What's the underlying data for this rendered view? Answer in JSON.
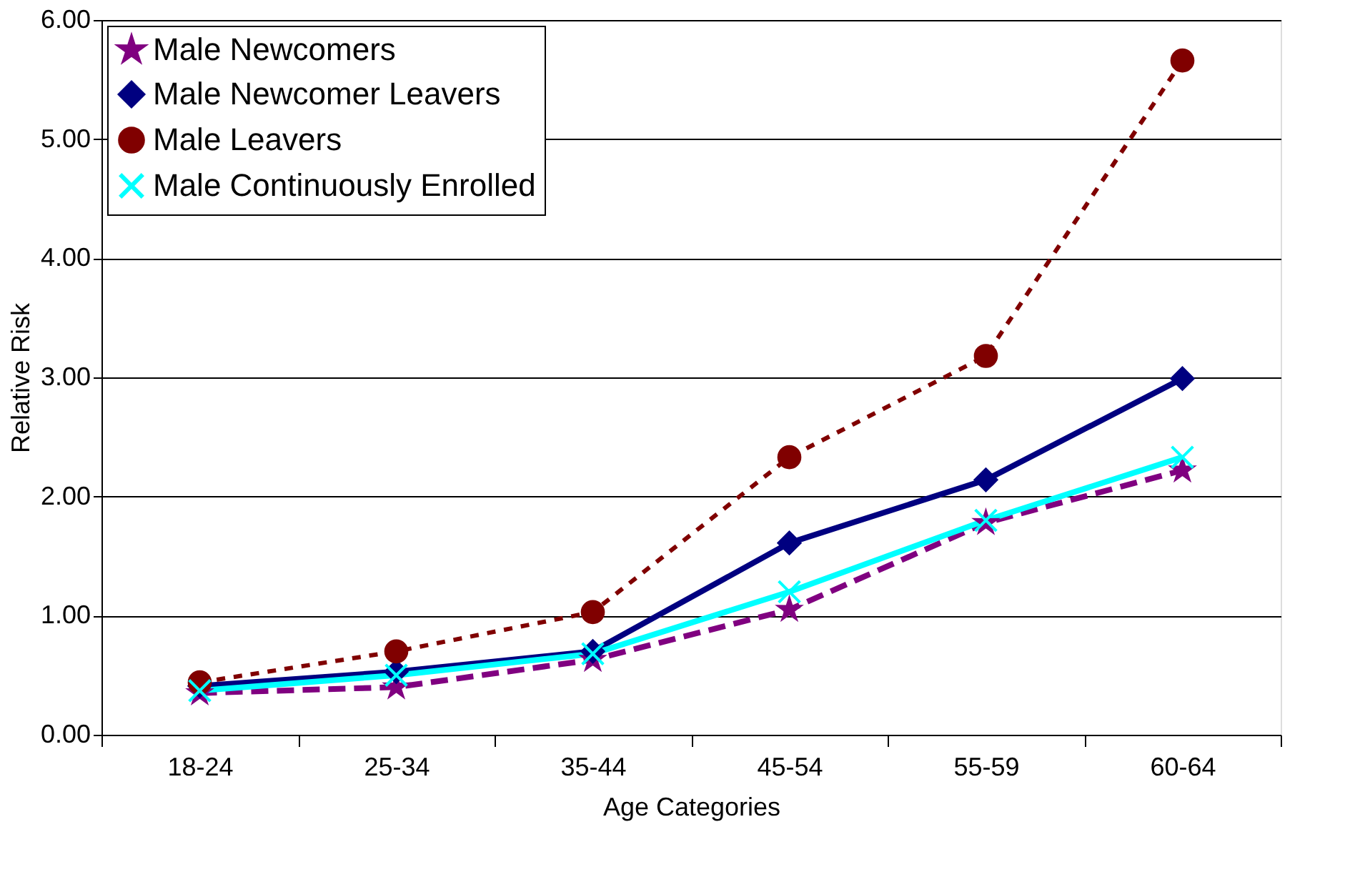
{
  "chart_data": {
    "type": "line",
    "xlabel": "Age Categories",
    "ylabel": "Relative Risk",
    "categories": [
      "18-24",
      "25-34",
      "35-44",
      "45-54",
      "55-59",
      "60-64"
    ],
    "series": [
      {
        "name": "Male Newcomers",
        "color": "#800080",
        "marker": "star",
        "line_style": "dashed",
        "values": [
          0.35,
          0.4,
          0.63,
          1.05,
          1.78,
          2.22
        ]
      },
      {
        "name": "Male Newcomer Leavers",
        "color": "#000080",
        "marker": "diamond",
        "line_style": "solid",
        "values": [
          0.41,
          0.53,
          0.7,
          1.61,
          2.14,
          2.99
        ]
      },
      {
        "name": "Male Leavers",
        "color": "#800000",
        "marker": "circle",
        "line_style": "dotted",
        "values": [
          0.44,
          0.7,
          1.03,
          2.33,
          3.18,
          5.66
        ]
      },
      {
        "name": "Male Continuously Enrolled",
        "color": "#00ffff",
        "marker": "cross",
        "line_style": "solid",
        "values": [
          0.37,
          0.5,
          0.68,
          1.2,
          1.8,
          2.33
        ]
      }
    ],
    "ylim": [
      0,
      6
    ],
    "yticks": [
      {
        "value": 0,
        "label": "0.00"
      },
      {
        "value": 1,
        "label": "1.00"
      },
      {
        "value": 2,
        "label": "2.00"
      },
      {
        "value": 3,
        "label": "3.00"
      },
      {
        "value": 4,
        "label": "4.00"
      },
      {
        "value": 5,
        "label": "5.00"
      },
      {
        "value": 6,
        "label": "6.00"
      }
    ],
    "grid": "y",
    "legend": "top left"
  }
}
